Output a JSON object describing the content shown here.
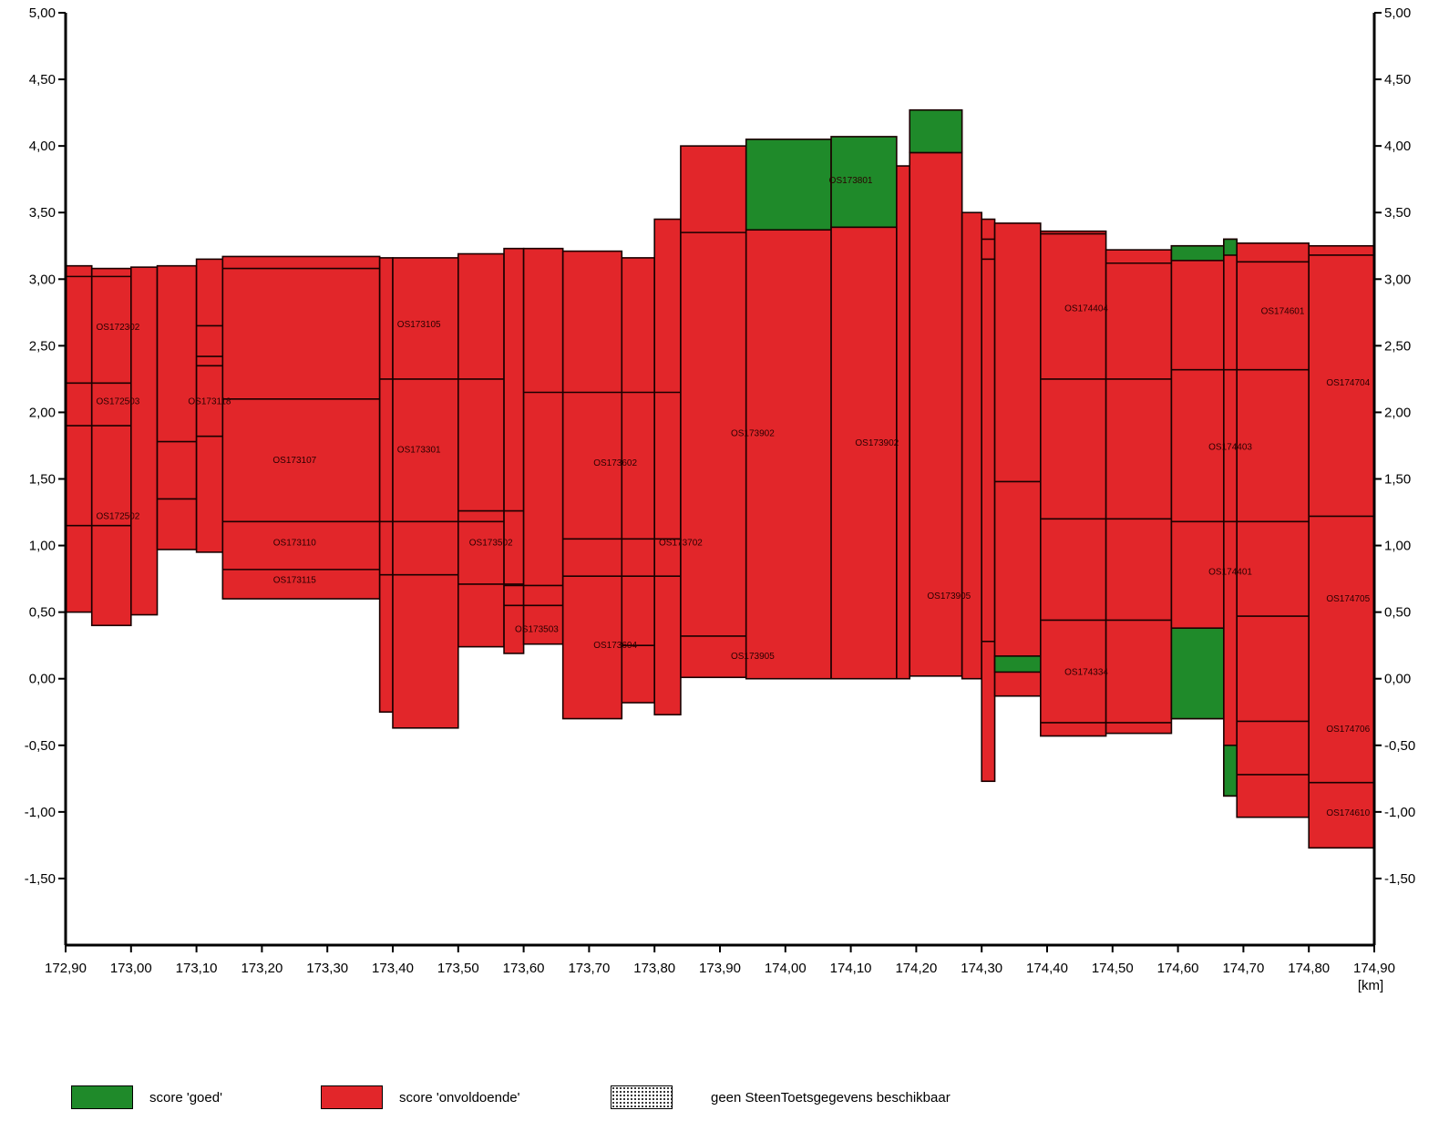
{
  "colors": {
    "goed": "#1f8a2a",
    "onvoldoende": "#e2262a",
    "axis": "#000000"
  },
  "chart_data": {
    "type": "bar",
    "title": "",
    "xlabel": "[km]",
    "ylabel": "",
    "xlim": [
      172.9,
      174.9
    ],
    "ylim": [
      -2.0,
      5.0
    ],
    "x_ticks": [
      172.9,
      173.0,
      173.1,
      173.2,
      173.3,
      173.4,
      173.5,
      173.6,
      173.7,
      173.8,
      173.9,
      174.0,
      174.1,
      174.2,
      174.3,
      174.4,
      174.5,
      174.6,
      174.7,
      174.8,
      174.9
    ],
    "x_tick_labels": [
      "172,90",
      "173,00",
      "173,10",
      "173,20",
      "173,30",
      "173,40",
      "173,50",
      "173,60",
      "173,70",
      "173,80",
      "173,90",
      "174,00",
      "174,10",
      "174,20",
      "174,30",
      "174,40",
      "174,50",
      "174,60",
      "174,70",
      "174,80",
      "174,90"
    ],
    "y_ticks_left": [
      5.0,
      4.5,
      4.0,
      3.5,
      3.0,
      2.5,
      2.0,
      1.5,
      1.0,
      0.5,
      0.0,
      -0.5,
      -1.0,
      -1.5
    ],
    "y_tick_labels_left": [
      "5,00",
      "4,50",
      "4,00",
      "3,50",
      "3,00",
      "2,50",
      "2,00",
      "1,50",
      "1,00",
      "0,50",
      "0,00",
      "-0,50",
      "-1,00",
      "-1,50"
    ],
    "y_ticks_right": [
      5.0,
      4.5,
      4.0,
      3.5,
      3.0,
      2.5,
      2.0,
      1.5,
      1.0,
      0.5,
      0.0,
      -0.5,
      -1.0,
      -1.5
    ],
    "y_tick_labels_right": [
      "5,00",
      "4,50",
      "4,00",
      "3,50",
      "3,00",
      "2,50",
      "2,00",
      "1,50",
      "1,00",
      "0,50",
      "0,00",
      "-0,50",
      "-1,00",
      "-1,50"
    ],
    "segments": [
      {
        "x0": 172.9,
        "x1": 172.94,
        "y0": 0.5,
        "y1": 3.1,
        "score": "onvoldoende"
      },
      {
        "x0": 172.94,
        "x1": 173.0,
        "y0": 0.4,
        "y1": 3.08,
        "score": "onvoldoende"
      },
      {
        "x0": 173.0,
        "x1": 173.04,
        "y0": 0.48,
        "y1": 3.09,
        "score": "onvoldoende"
      },
      {
        "x0": 173.04,
        "x1": 173.1,
        "y0": 0.97,
        "y1": 3.1,
        "score": "onvoldoende"
      },
      {
        "x0": 173.1,
        "x1": 173.14,
        "y0": 0.95,
        "y1": 3.15,
        "score": "onvoldoende"
      },
      {
        "x0": 173.14,
        "x1": 173.38,
        "y0": 0.6,
        "y1": 3.17,
        "score": "onvoldoende"
      },
      {
        "x0": 173.38,
        "x1": 173.4,
        "y0": -0.25,
        "y1": 3.16,
        "score": "onvoldoende"
      },
      {
        "x0": 173.4,
        "x1": 173.5,
        "y0": -0.37,
        "y1": 3.16,
        "score": "onvoldoende"
      },
      {
        "x0": 173.5,
        "x1": 173.57,
        "y0": 0.24,
        "y1": 3.19,
        "score": "onvoldoende"
      },
      {
        "x0": 173.57,
        "x1": 173.6,
        "y0": 0.19,
        "y1": 3.23,
        "score": "onvoldoende"
      },
      {
        "x0": 173.6,
        "x1": 173.66,
        "y0": 0.26,
        "y1": 3.23,
        "score": "onvoldoende"
      },
      {
        "x0": 173.66,
        "x1": 173.75,
        "y0": -0.3,
        "y1": 3.21,
        "score": "onvoldoende"
      },
      {
        "x0": 173.75,
        "x1": 173.8,
        "y0": -0.18,
        "y1": 3.16,
        "score": "onvoldoende"
      },
      {
        "x0": 173.8,
        "x1": 173.84,
        "y0": -0.27,
        "y1": 3.45,
        "score": "onvoldoende"
      },
      {
        "x0": 173.84,
        "x1": 173.94,
        "y0": 0.01,
        "y1": 4.0,
        "score": "onvoldoende"
      },
      {
        "x0": 173.94,
        "x1": 174.07,
        "y0": 0.0,
        "y1": 3.37,
        "score": "onvoldoende"
      },
      {
        "x0": 173.94,
        "x1": 174.07,
        "y0": 3.37,
        "y1": 4.05,
        "score": "goed"
      },
      {
        "x0": 174.07,
        "x1": 174.17,
        "y0": 0.0,
        "y1": 3.39,
        "score": "onvoldoende"
      },
      {
        "x0": 174.07,
        "x1": 174.17,
        "y0": 3.39,
        "y1": 4.07,
        "score": "goed"
      },
      {
        "x0": 174.17,
        "x1": 174.19,
        "y0": 0.0,
        "y1": 3.85,
        "score": "onvoldoende"
      },
      {
        "x0": 174.19,
        "x1": 174.27,
        "y0": 0.02,
        "y1": 3.95,
        "score": "onvoldoende"
      },
      {
        "x0": 174.19,
        "x1": 174.27,
        "y0": 3.95,
        "y1": 4.27,
        "score": "goed"
      },
      {
        "x0": 174.27,
        "x1": 174.3,
        "y0": 0.0,
        "y1": 3.5,
        "score": "onvoldoende"
      },
      {
        "x0": 174.3,
        "x1": 174.32,
        "y0": -0.77,
        "y1": 3.45,
        "score": "onvoldoende"
      },
      {
        "x0": 174.32,
        "x1": 174.39,
        "y0": -0.13,
        "y1": 3.42,
        "score": "onvoldoende"
      },
      {
        "x0": 174.32,
        "x1": 174.39,
        "y0": 0.05,
        "y1": 0.17,
        "score": "goed"
      },
      {
        "x0": 174.39,
        "x1": 174.49,
        "y0": -0.43,
        "y1": 3.36,
        "score": "onvoldoende"
      },
      {
        "x0": 174.49,
        "x1": 174.59,
        "y0": -0.41,
        "y1": 3.22,
        "score": "onvoldoende"
      },
      {
        "x0": 174.59,
        "x1": 174.67,
        "y0": -0.3,
        "y1": 3.25,
        "score": "onvoldoende"
      },
      {
        "x0": 174.59,
        "x1": 174.67,
        "y0": -0.3,
        "y1": 0.38,
        "score": "goed"
      },
      {
        "x0": 174.59,
        "x1": 174.67,
        "y0": 3.14,
        "y1": 3.25,
        "score": "goed"
      },
      {
        "x0": 174.67,
        "x1": 174.69,
        "y0": -0.88,
        "y1": 3.3,
        "score": "onvoldoende"
      },
      {
        "x0": 174.67,
        "x1": 174.69,
        "y0": -0.88,
        "y1": -0.5,
        "score": "goed"
      },
      {
        "x0": 174.67,
        "x1": 174.69,
        "y0": 3.18,
        "y1": 3.3,
        "score": "goed"
      },
      {
        "x0": 174.69,
        "x1": 174.8,
        "y0": -1.04,
        "y1": 3.27,
        "score": "onvoldoende"
      },
      {
        "x0": 174.8,
        "x1": 174.9,
        "y0": -1.27,
        "y1": 3.25,
        "score": "onvoldoende"
      }
    ],
    "boundaries": [
      {
        "x0": 172.9,
        "x1": 173.0,
        "y": 2.22
      },
      {
        "x0": 172.9,
        "x1": 173.0,
        "y": 1.9
      },
      {
        "x0": 172.9,
        "x1": 173.0,
        "y": 1.15
      },
      {
        "x0": 172.9,
        "x1": 173.0,
        "y": 3.02
      },
      {
        "x0": 173.04,
        "x1": 173.1,
        "y": 1.78
      },
      {
        "x0": 173.04,
        "x1": 173.1,
        "y": 1.35
      },
      {
        "x0": 173.1,
        "x1": 173.14,
        "y": 2.65
      },
      {
        "x0": 173.1,
        "x1": 173.14,
        "y": 2.42
      },
      {
        "x0": 173.1,
        "x1": 173.14,
        "y": 2.35
      },
      {
        "x0": 173.1,
        "x1": 173.14,
        "y": 1.82
      },
      {
        "x0": 173.14,
        "x1": 173.38,
        "y": 3.08
      },
      {
        "x0": 173.14,
        "x1": 173.38,
        "y": 2.1
      },
      {
        "x0": 173.14,
        "x1": 173.38,
        "y": 1.18
      },
      {
        "x0": 173.14,
        "x1": 173.38,
        "y": 0.82
      },
      {
        "x0": 173.38,
        "x1": 173.57,
        "y": 2.25
      },
      {
        "x0": 173.38,
        "x1": 173.57,
        "y": 1.18
      },
      {
        "x0": 173.38,
        "x1": 173.5,
        "y": 0.78
      },
      {
        "x0": 173.5,
        "x1": 173.6,
        "y": 1.26
      },
      {
        "x0": 173.5,
        "x1": 173.6,
        "y": 0.71
      },
      {
        "x0": 173.57,
        "x1": 173.66,
        "y": 0.7
      },
      {
        "x0": 173.57,
        "x1": 173.66,
        "y": 0.55
      },
      {
        "x0": 173.6,
        "x1": 173.84,
        "y": 2.15
      },
      {
        "x0": 173.66,
        "x1": 173.84,
        "y": 1.05
      },
      {
        "x0": 173.66,
        "x1": 173.84,
        "y": 0.77
      },
      {
        "x0": 173.75,
        "x1": 173.8,
        "y": 0.25
      },
      {
        "x0": 173.84,
        "x1": 173.94,
        "y": 3.35
      },
      {
        "x0": 173.84,
        "x1": 173.94,
        "y": 0.32
      },
      {
        "x0": 174.39,
        "x1": 174.59,
        "y": 2.25
      },
      {
        "x0": 174.39,
        "x1": 174.59,
        "y": 1.2
      },
      {
        "x0": 174.39,
        "x1": 174.59,
        "y": 0.44
      },
      {
        "x0": 174.39,
        "x1": 174.59,
        "y": -0.33
      },
      {
        "x0": 174.39,
        "x1": 174.49,
        "y": 3.34
      },
      {
        "x0": 174.49,
        "x1": 174.59,
        "y": 3.12
      },
      {
        "x0": 174.59,
        "x1": 174.8,
        "y": 2.32
      },
      {
        "x0": 174.59,
        "x1": 174.8,
        "y": 1.18
      },
      {
        "x0": 174.69,
        "x1": 174.8,
        "y": 3.13
      },
      {
        "x0": 174.69,
        "x1": 174.8,
        "y": 0.47
      },
      {
        "x0": 174.69,
        "x1": 174.8,
        "y": -0.32
      },
      {
        "x0": 174.69,
        "x1": 174.8,
        "y": -0.72
      },
      {
        "x0": 174.8,
        "x1": 174.9,
        "y": 3.18
      },
      {
        "x0": 174.8,
        "x1": 174.9,
        "y": 1.22
      },
      {
        "x0": 174.8,
        "x1": 174.9,
        "y": -0.78
      },
      {
        "x0": 174.32,
        "x1": 174.39,
        "y": 1.48
      },
      {
        "x0": 174.3,
        "x1": 174.32,
        "y": 0.28
      },
      {
        "x0": 174.3,
        "x1": 174.32,
        "y": 3.3
      },
      {
        "x0": 174.3,
        "x1": 174.32,
        "y": 3.15
      }
    ],
    "section_labels": [
      {
        "text": "OS172302",
        "x": 172.98,
        "y": 2.62
      },
      {
        "text": "OS172503",
        "x": 172.98,
        "y": 2.06
      },
      {
        "text": "OS172502",
        "x": 172.98,
        "y": 1.2
      },
      {
        "text": "OS173118",
        "x": 173.12,
        "y": 2.06
      },
      {
        "text": "OS173105",
        "x": 173.44,
        "y": 2.64
      },
      {
        "text": "OS173107",
        "x": 173.25,
        "y": 1.62
      },
      {
        "text": "OS173301",
        "x": 173.44,
        "y": 1.7
      },
      {
        "text": "OS173110",
        "x": 173.25,
        "y": 1.0
      },
      {
        "text": "OS173115",
        "x": 173.25,
        "y": 0.72
      },
      {
        "text": "OS173502",
        "x": 173.55,
        "y": 1.0
      },
      {
        "text": "OS173503",
        "x": 173.62,
        "y": 0.35
      },
      {
        "text": "OS173602",
        "x": 173.74,
        "y": 1.6
      },
      {
        "text": "OS173702",
        "x": 173.84,
        "y": 1.0
      },
      {
        "text": "OS173604",
        "x": 173.74,
        "y": 0.23
      },
      {
        "text": "OS173902",
        "x": 173.95,
        "y": 1.82
      },
      {
        "text": "OS173905",
        "x": 173.95,
        "y": 0.15
      },
      {
        "text": "OS173801",
        "x": 174.1,
        "y": 3.72
      },
      {
        "text": "OS173902",
        "x": 174.14,
        "y": 1.75
      },
      {
        "text": "OS173905",
        "x": 174.25,
        "y": 0.6
      },
      {
        "text": "OS174404",
        "x": 174.46,
        "y": 2.76
      },
      {
        "text": "OS174601",
        "x": 174.76,
        "y": 2.74
      },
      {
        "text": "OS174704",
        "x": 174.86,
        "y": 2.2
      },
      {
        "text": "OS174403",
        "x": 174.68,
        "y": 1.72
      },
      {
        "text": "OS174401",
        "x": 174.68,
        "y": 0.78
      },
      {
        "text": "OS174705",
        "x": 174.86,
        "y": 0.58
      },
      {
        "text": "OS174334",
        "x": 174.46,
        "y": 0.03
      },
      {
        "text": "OS174706",
        "x": 174.86,
        "y": -0.4
      },
      {
        "text": "OS174610",
        "x": 174.86,
        "y": -1.03
      }
    ]
  },
  "legend": [
    {
      "label": "score 'goed'",
      "swatch": "goed"
    },
    {
      "label": "score 'onvoldoende'",
      "swatch": "onvoldoende"
    },
    {
      "label": "geen SteenToetsgegevens beschikbaar",
      "swatch": "dotted"
    }
  ]
}
